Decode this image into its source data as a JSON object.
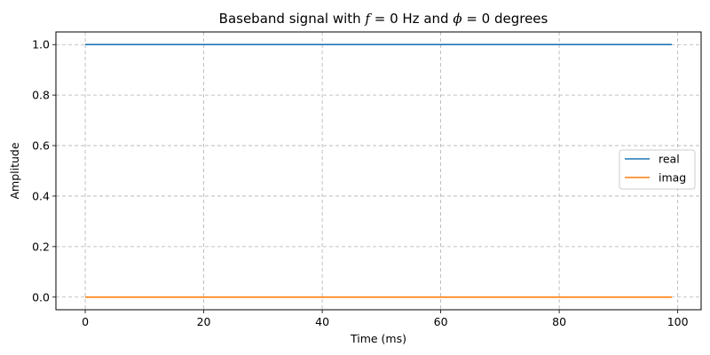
{
  "chart_data": {
    "type": "line",
    "title_parts": [
      "Baseband signal with ",
      "f",
      " = 0 Hz and ",
      "ϕ",
      " = 0 degrees"
    ],
    "xlabel": "Time (ms)",
    "ylabel": "Amplitude",
    "xlim": [
      -4.95,
      103.95
    ],
    "ylim": [
      -0.05,
      1.05
    ],
    "x_ticks": [
      0,
      20,
      40,
      60,
      80,
      100
    ],
    "y_ticks": [
      0.0,
      0.2,
      0.4,
      0.6,
      0.8,
      1.0
    ],
    "grid": true,
    "legend_position": "center-right",
    "series": [
      {
        "name": "real",
        "color": "#1f77b4",
        "x": [
          0,
          99
        ],
        "y": [
          1.0,
          1.0
        ]
      },
      {
        "name": "imag",
        "color": "#ff7f0e",
        "x": [
          0,
          99
        ],
        "y": [
          0.0,
          0.0
        ]
      }
    ]
  }
}
